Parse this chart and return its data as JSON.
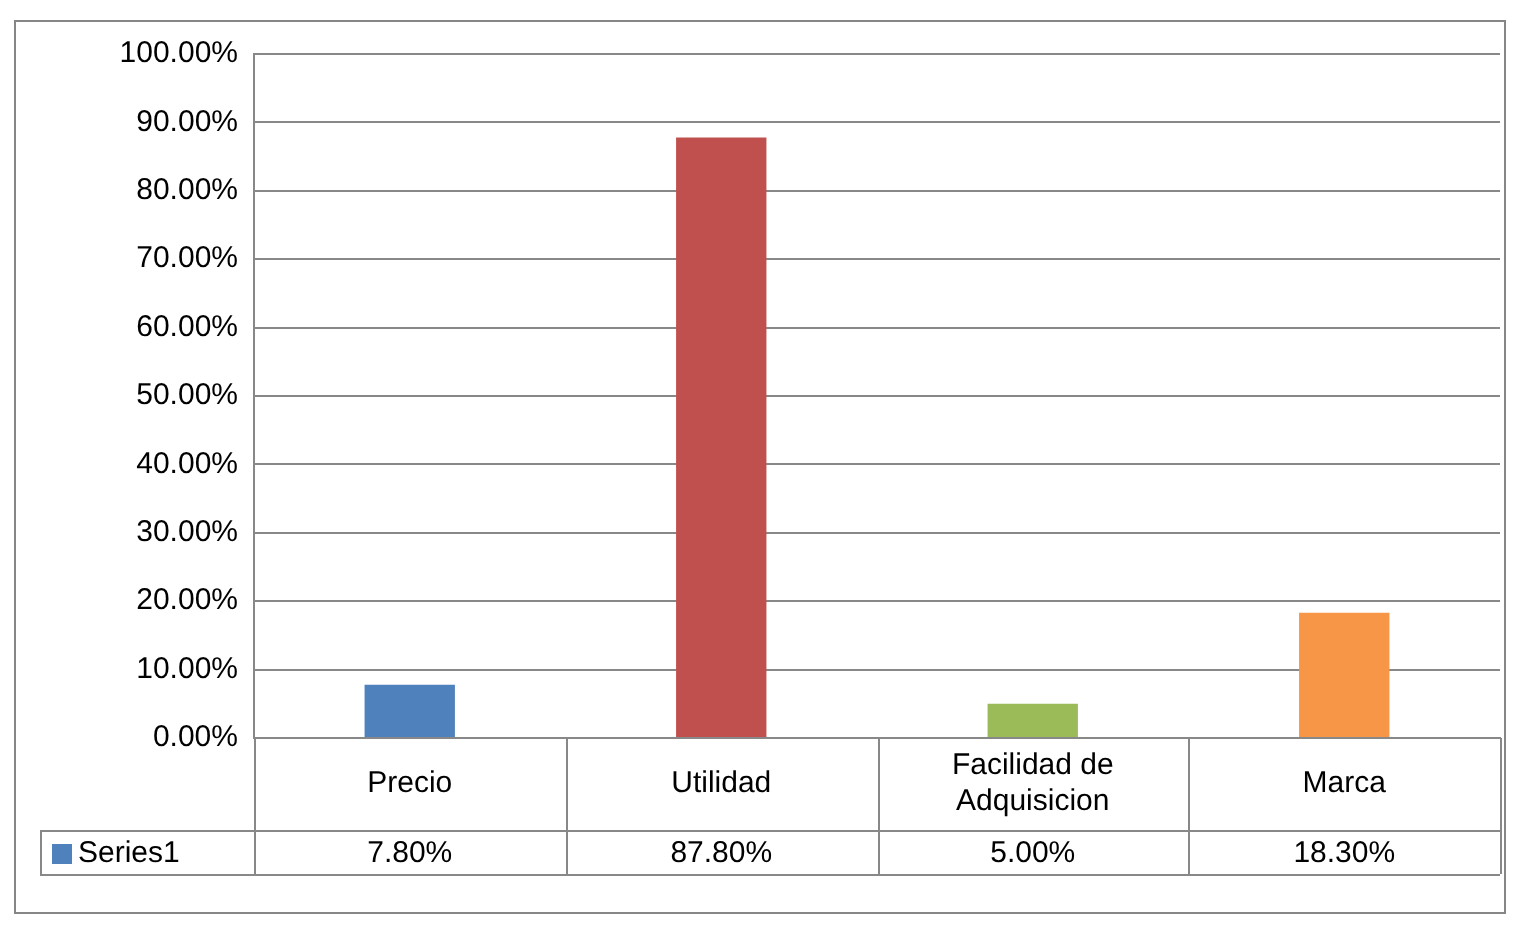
{
  "chart_data": {
    "type": "bar",
    "categories": [
      "Precio",
      "Utilidad",
      "Facilidad de Adquisicion",
      "Marca"
    ],
    "series": [
      {
        "name": "Series1",
        "color": "#4f81bd",
        "colors": [
          "#4f81bd",
          "#c0504d",
          "#9bbb59",
          "#f79646"
        ],
        "values": [
          7.8,
          87.8,
          5.0,
          18.3
        ],
        "value_labels": [
          "7.80%",
          "87.80%",
          "5.00%",
          "18.30%"
        ]
      }
    ],
    "ylim": [
      0,
      100
    ],
    "yticks": [
      {
        "value": 0,
        "label": "0.00%"
      },
      {
        "value": 10,
        "label": "10.00%"
      },
      {
        "value": 20,
        "label": "20.00%"
      },
      {
        "value": 30,
        "label": "30.00%"
      },
      {
        "value": 40,
        "label": "40.00%"
      },
      {
        "value": 50,
        "label": "50.00%"
      },
      {
        "value": 60,
        "label": "60.00%"
      },
      {
        "value": 70,
        "label": "70.00%"
      },
      {
        "value": 80,
        "label": "80.00%"
      },
      {
        "value": 90,
        "label": "90.00%"
      },
      {
        "value": 100,
        "label": "100.00%"
      }
    ],
    "grid": "y",
    "legend": "bottom"
  }
}
